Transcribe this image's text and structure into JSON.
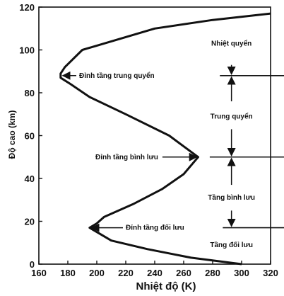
{
  "chart_data": {
    "type": "line",
    "title": "",
    "xlabel": "Nhiệt độ (K)",
    "ylabel": "Độ cao (km)",
    "xlim": [
      160,
      320
    ],
    "ylim": [
      0,
      120
    ],
    "xticks": [
      "160",
      "180",
      "200",
      "220",
      "240",
      "260",
      "280",
      "300",
      "320"
    ],
    "yticks": [
      "0",
      "20",
      "40",
      "60",
      "80",
      "100",
      "120"
    ],
    "grid": false,
    "series": [
      {
        "name": "",
        "x": [
          300,
          265,
          235,
          210,
          195,
          200,
          205,
          225,
          245,
          260,
          270,
          250,
          220,
          195,
          182,
          175,
          175,
          178,
          190,
          240,
          280,
          320
        ],
        "y": [
          0,
          3,
          7,
          11,
          17,
          19,
          22,
          28,
          35,
          42,
          50,
          60,
          70,
          78,
          84,
          87,
          89,
          92,
          100,
          110,
          114,
          117
        ]
      }
    ],
    "layer_boundaries": [
      {
        "altitude": 17,
        "label": "Tầng đối lưu"
      },
      {
        "altitude": 50,
        "label": "Tầng bình lưu"
      },
      {
        "altitude": 88,
        "label": "Trung quyển"
      }
    ],
    "region_labels": [
      {
        "label": "Nhiệt quyển",
        "altitude": 103
      },
      {
        "label": "Trung quyển",
        "altitude": 69
      },
      {
        "label": "Tầng bình lưu",
        "altitude": 31
      },
      {
        "label": "Tầng đối lưu",
        "altitude": 9
      }
    ],
    "annotations": [
      {
        "text": "Đỉnh tầng trung quyển",
        "x": 175,
        "y": 88
      },
      {
        "text": "Đỉnh tầng bình lưu",
        "x": 270,
        "y": 50
      },
      {
        "text": "Đỉnh tầng đối lưu",
        "x": 195,
        "y": 17
      }
    ]
  }
}
